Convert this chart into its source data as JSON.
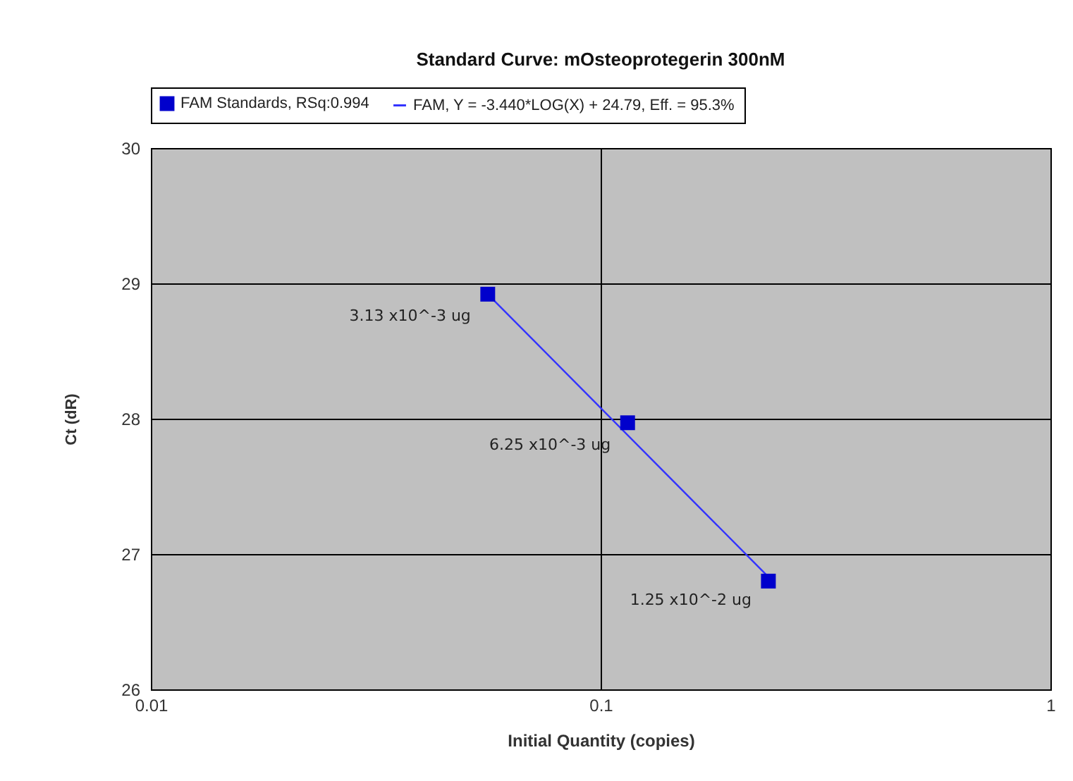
{
  "chart_data": {
    "type": "scatter",
    "title": "Standard Curve: mOsteoprotegerin 300nM",
    "xlabel": "Initial Quantity (copies)",
    "ylabel": "Ct (dR)",
    "log": "x",
    "xlim": [
      0.01,
      1
    ],
    "xticks": [
      0.01,
      0.1,
      1
    ],
    "ylim": [
      26,
      30
    ],
    "yticks": [
      26,
      27,
      28,
      29,
      30
    ],
    "grid": true,
    "legend": "top",
    "series": [
      {
        "name": "FAM Standards, RSq:0.994",
        "marker": "square",
        "color": "#0000cc",
        "x": [
          0.0561,
          0.1148,
          0.236
        ],
        "values": [
          28.92,
          27.97,
          26.8
        ]
      },
      {
        "name": "FAM, Y = -3.440*LOG(X) + 24.79, Eff. = 95.3%",
        "type": "line",
        "line_style": "solid",
        "color": "#3333ff",
        "x": [
          0.0561,
          0.233
        ],
        "values": [
          28.92,
          26.85
        ]
      }
    ],
    "annotations": [
      {
        "text": "3.13 x10^-3 ug",
        "x": 0.0561,
        "y": 28.9
      },
      {
        "text": "6.25 x10^-3 ug",
        "x": 0.1148,
        "y": 27.95
      },
      {
        "text": "1.25 x10^-2 ug",
        "x": 0.236,
        "y": 26.8
      }
    ]
  }
}
